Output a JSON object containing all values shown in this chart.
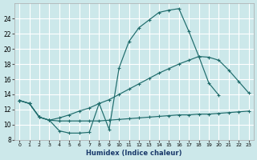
{
  "xlabel": "Humidex (Indice chaleur)",
  "bg_color": "#cce8ea",
  "grid_color": "#ffffff",
  "line_color": "#1e6b6b",
  "xlim": [
    -0.5,
    23.5
  ],
  "ylim": [
    8,
    26
  ],
  "xticks": [
    0,
    1,
    2,
    3,
    4,
    5,
    6,
    7,
    8,
    9,
    10,
    11,
    12,
    13,
    14,
    15,
    16,
    17,
    18,
    19,
    20,
    21,
    22,
    23
  ],
  "yticks": [
    8,
    10,
    12,
    14,
    16,
    18,
    20,
    22,
    24
  ],
  "line1_x": [
    0,
    1,
    2,
    3,
    4,
    5,
    6,
    7,
    8,
    9,
    10,
    11,
    12,
    13,
    14,
    15,
    16,
    17,
    18,
    19,
    20,
    21,
    22,
    23
  ],
  "line1_y": [
    13.2,
    12.8,
    11.0,
    10.6,
    9.2,
    8.9,
    8.9,
    9.0,
    12.8,
    9.4,
    17.5,
    21.0,
    22.8,
    23.8,
    24.8,
    25.1,
    25.3,
    22.3,
    19.0,
    15.5,
    13.9,
    null,
    null,
    null
  ],
  "line2_x": [
    0,
    1,
    2,
    3,
    4,
    5,
    6,
    7,
    8,
    9,
    10,
    11,
    12,
    13,
    14,
    15,
    16,
    17,
    18,
    19,
    20,
    21,
    22,
    23
  ],
  "line2_y": [
    13.2,
    12.8,
    11.0,
    10.6,
    10.5,
    10.5,
    10.5,
    10.5,
    10.5,
    10.6,
    10.7,
    10.8,
    10.9,
    11.0,
    11.1,
    11.2,
    11.3,
    11.3,
    11.4,
    11.4,
    11.5,
    11.6,
    11.7,
    11.8
  ],
  "line3_x": [
    0,
    1,
    2,
    3,
    4,
    5,
    6,
    7,
    8,
    9,
    10,
    11,
    12,
    13,
    14,
    15,
    16,
    17,
    18,
    19,
    20,
    21,
    22,
    23
  ],
  "line3_y": [
    13.2,
    12.8,
    11.0,
    10.6,
    10.9,
    11.3,
    11.8,
    12.2,
    12.8,
    13.3,
    14.0,
    14.7,
    15.4,
    16.1,
    16.8,
    17.4,
    18.0,
    18.5,
    19.0,
    18.9,
    18.5,
    17.2,
    15.7,
    14.2
  ]
}
